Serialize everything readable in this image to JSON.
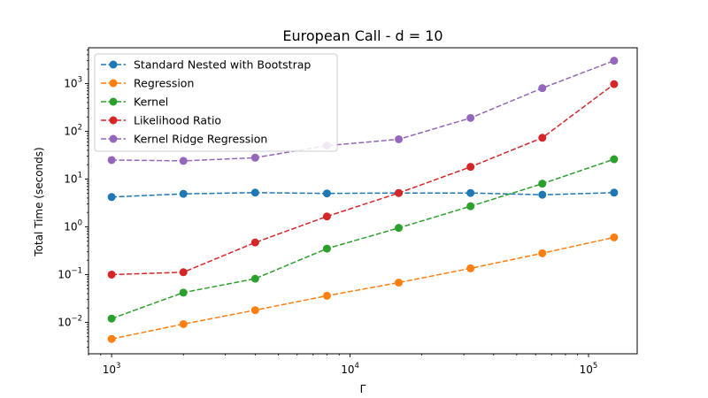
{
  "chart_data": {
    "type": "line",
    "title": "European Call - d = 10",
    "xlabel": "Γ",
    "ylabel": "Total Time (seconds)",
    "x_scale": "log",
    "y_scale": "log",
    "xlim": [
      800,
      160000
    ],
    "ylim": [
      0.0022,
      5600
    ],
    "grid": false,
    "legend_position": "top-left",
    "x_ticks": [
      {
        "value": 1000,
        "base": "10",
        "exp": "3"
      },
      {
        "value": 10000,
        "base": "10",
        "exp": "4"
      },
      {
        "value": 100000,
        "base": "10",
        "exp": "5"
      }
    ],
    "y_ticks": [
      {
        "value": 0.01,
        "base": "10",
        "exp": "−2"
      },
      {
        "value": 0.1,
        "base": "10",
        "exp": "−1"
      },
      {
        "value": 1,
        "base": "10",
        "exp": "0"
      },
      {
        "value": 10,
        "base": "10",
        "exp": "1"
      },
      {
        "value": 100,
        "base": "10",
        "exp": "2"
      },
      {
        "value": 1000,
        "base": "10",
        "exp": "3"
      }
    ],
    "x": [
      1000,
      2000,
      4000,
      8000,
      16000,
      32000,
      64000,
      128000
    ],
    "series": [
      {
        "name": "Standard Nested with Bootstrap",
        "color": "#1f77b4",
        "values": [
          4.2,
          4.9,
          5.2,
          5.0,
          5.1,
          5.1,
          4.7,
          5.2
        ]
      },
      {
        "name": "Regression",
        "color": "#ff7f0e",
        "values": [
          0.0045,
          0.0092,
          0.018,
          0.036,
          0.068,
          0.135,
          0.28,
          0.6
        ]
      },
      {
        "name": "Kernel",
        "color": "#2ca02c",
        "values": [
          0.012,
          0.042,
          0.082,
          0.35,
          0.95,
          2.7,
          8.0,
          26
        ]
      },
      {
        "name": "Likelihood Ratio",
        "color": "#d62728",
        "values": [
          0.1,
          0.112,
          0.47,
          1.65,
          5.1,
          18,
          73,
          970
        ]
      },
      {
        "name": "Kernel Ridge Regression",
        "color": "#9467bd",
        "values": [
          25,
          24,
          28,
          50,
          68,
          190,
          800,
          3000
        ]
      }
    ]
  }
}
